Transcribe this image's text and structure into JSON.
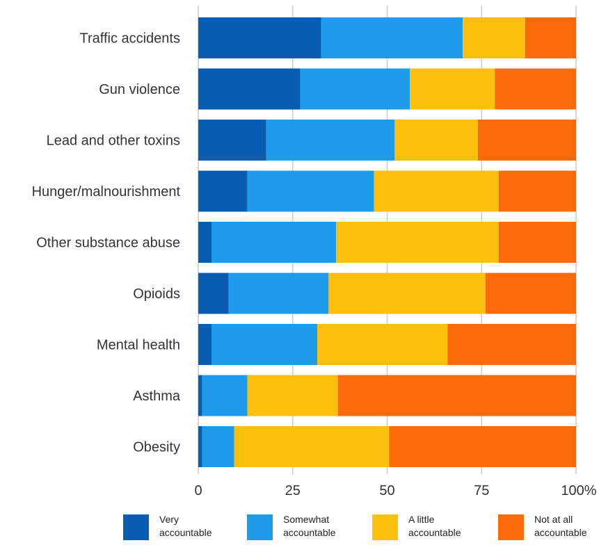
{
  "chart_data": {
    "type": "bar",
    "orientation": "horizontal",
    "stacked": true,
    "categories": [
      "Traffic accidents",
      "Gun violence",
      "Lead and other toxins",
      "Hunger/malnourishment",
      "Other substance abuse",
      "Opioids",
      "Mental health",
      "Asthma",
      "Obesity"
    ],
    "series": [
      {
        "name": "Very accountable",
        "legend_lines": [
          "Very",
          "accountable"
        ],
        "color": "#0a5cb3",
        "values": [
          32.5,
          27,
          18,
          13,
          3.5,
          8,
          3.5,
          1,
          1
        ]
      },
      {
        "name": "Somewhat accountable",
        "legend_lines": [
          "Somewhat",
          "accountable"
        ],
        "color": "#1e9beb",
        "values": [
          37.5,
          29,
          34,
          33.5,
          33,
          26.5,
          28,
          12,
          8.5
        ]
      },
      {
        "name": "A little accountable",
        "legend_lines": [
          "A little",
          "accountable"
        ],
        "color": "#fbbf0e",
        "values": [
          16.5,
          22.5,
          22,
          33,
          43,
          41.5,
          34.5,
          24,
          41
        ]
      },
      {
        "name": "Not at all accountable",
        "legend_lines": [
          "Not at all",
          "accountable"
        ],
        "color": "#f96b08",
        "values": [
          13.5,
          21.5,
          26,
          20.5,
          20.5,
          24,
          34,
          63,
          49.5
        ]
      }
    ],
    "x_ticks": [
      "0",
      "25",
      "50",
      "75",
      "100%"
    ],
    "xlim": [
      0,
      100
    ],
    "grid": true,
    "legend_position": "bottom"
  }
}
